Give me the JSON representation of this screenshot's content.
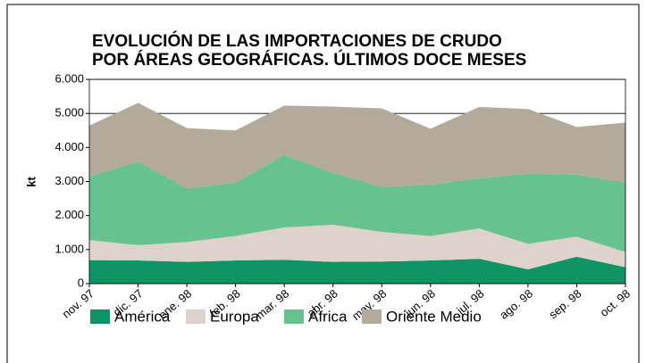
{
  "chart_data": {
    "type": "stacked_area",
    "title": [
      "EVOLUCIÓN DE LAS IMPORTACIONES DE CRUDO",
      "POR ÁREAS GEOGRÁFICAS. ÚLTIMOS DOCE MESES"
    ],
    "y_label": "kt",
    "categories": [
      "nov. 97",
      "dic. 97",
      "ene. 98",
      "feb. 98",
      "mar. 98",
      "abr. 98",
      "may. 98",
      "jun. 98",
      "jul. 98",
      "ago. 98",
      "sep. 98",
      "oct. 98"
    ],
    "series": [
      {
        "name": "América",
        "color": "#0f9466",
        "values": [
          690,
          680,
          640,
          680,
          700,
          640,
          650,
          680,
          730,
          420,
          790,
          480
        ]
      },
      {
        "name": "Europa",
        "color": "#ddd2cc",
        "values": [
          590,
          450,
          580,
          720,
          950,
          1090,
          870,
          720,
          890,
          750,
          590,
          450
        ]
      },
      {
        "name": "África",
        "color": "#66c28f",
        "values": [
          1870,
          2450,
          1580,
          1560,
          2130,
          1520,
          1320,
          1500,
          1470,
          2060,
          1820,
          2030
        ]
      },
      {
        "name": "Oriente Medio",
        "color": "#b4aa9b",
        "values": [
          1490,
          1730,
          1770,
          1540,
          1450,
          1950,
          2310,
          1650,
          2100,
          1900,
          1400,
          1770
        ]
      }
    ],
    "ylim": [
      0,
      6000
    ],
    "yticks": [
      0,
      {
        "value": 1000,
        "label": "1.000"
      },
      {
        "value": 2000,
        "label": "2.000"
      },
      {
        "value": 3000,
        "label": "3.000"
      },
      {
        "value": 4000,
        "label": "4.000"
      },
      {
        "value": 5000,
        "label": "5.000"
      },
      {
        "value": 6000,
        "label": "6.000"
      }
    ],
    "grid": true,
    "legend": "bottom"
  }
}
